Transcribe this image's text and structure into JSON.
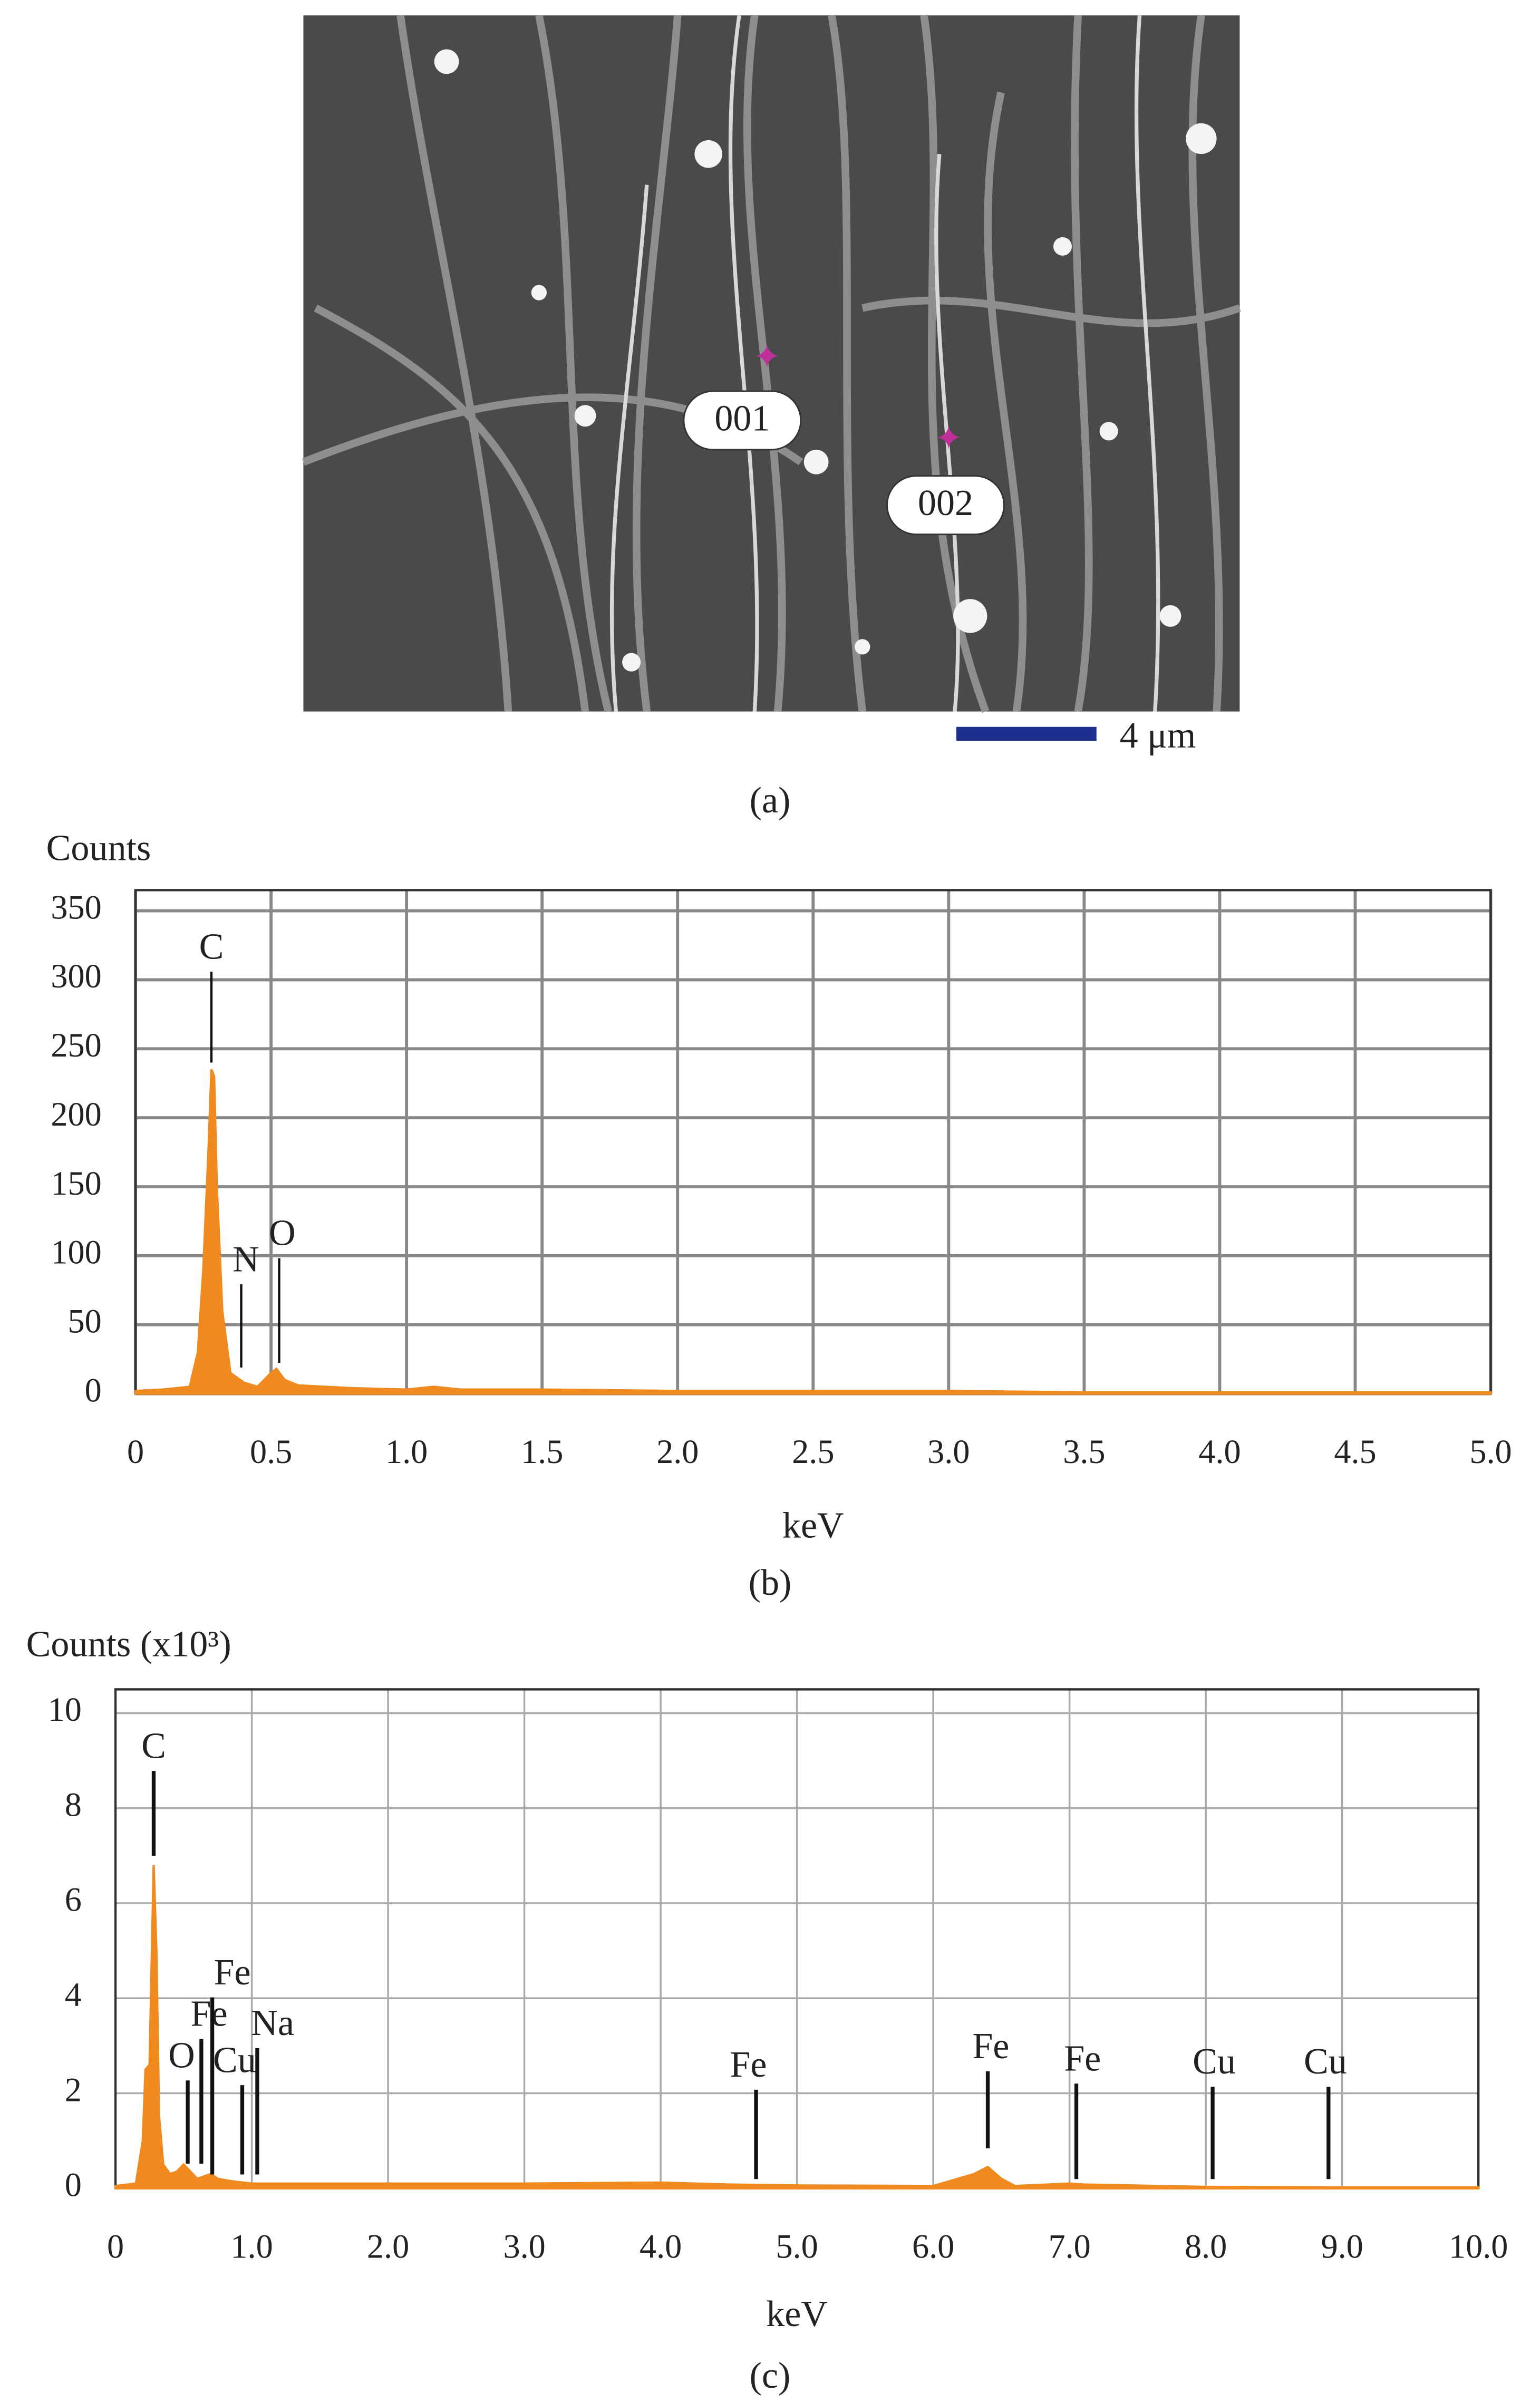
{
  "image": {
    "labels": [
      "001",
      "002"
    ],
    "scale_bar": "4 μm",
    "caption": "(a)"
  },
  "chart_data": [
    {
      "type": "area",
      "caption": "(b)",
      "y_label": "Counts",
      "x_label": "keV",
      "color": "#f08a1e",
      "grid": true,
      "x": [
        0,
        0.1,
        0.2,
        0.23,
        0.25,
        0.27,
        0.28,
        0.29,
        0.3,
        0.32,
        0.35,
        0.4,
        0.45,
        0.5,
        0.52,
        0.55,
        0.6,
        0.7,
        0.8,
        1.0,
        1.1,
        1.2,
        1.5,
        2.0,
        2.5,
        3.0,
        3.5,
        4.0,
        4.5,
        5.0
      ],
      "values": [
        2,
        3,
        5,
        30,
        90,
        180,
        235,
        230,
        150,
        60,
        15,
        8,
        5,
        15,
        18,
        10,
        6,
        5,
        4,
        3,
        5,
        3,
        3,
        2,
        2,
        2,
        1,
        1,
        1,
        1
      ],
      "xlim": [
        0,
        5
      ],
      "ylim": [
        0,
        365
      ],
      "xticks": [
        0,
        0.5,
        {
          "value": 1,
          "label": "1.0"
        },
        1.5,
        {
          "value": 2,
          "label": "2.0"
        },
        2.5,
        {
          "value": 3,
          "label": "3.0"
        },
        3.5,
        {
          "value": 4,
          "label": "4.0"
        },
        4.5,
        {
          "value": 5,
          "label": "5.0"
        }
      ],
      "yticks": [
        0,
        50,
        100,
        150,
        200,
        250,
        300,
        350
      ],
      "peaks": [
        {
          "label": "C",
          "x": 0.28
        },
        {
          "label": "N",
          "x": 0.39
        },
        {
          "label": "O",
          "x": 0.53
        }
      ]
    },
    {
      "type": "area",
      "caption": "(c)",
      "y_label": "Counts (x10³)",
      "x_label": "keV",
      "color": "#f08a1e",
      "grid": true,
      "x": [
        0,
        0.15,
        0.2,
        0.22,
        0.25,
        0.27,
        0.28,
        0.3,
        0.32,
        0.35,
        0.4,
        0.45,
        0.5,
        0.55,
        0.6,
        0.7,
        0.75,
        0.85,
        1.0,
        1.5,
        2.0,
        3.0,
        4.0,
        4.5,
        5.0,
        6.0,
        6.3,
        6.4,
        6.5,
        6.6,
        7.0,
        7.1,
        8.0,
        9.0,
        10.0
      ],
      "values": [
        0.05,
        0.1,
        1.0,
        2.5,
        2.6,
        5.4,
        6.8,
        5.0,
        1.5,
        0.5,
        0.3,
        0.35,
        0.5,
        0.35,
        0.2,
        0.3,
        0.2,
        0.15,
        0.1,
        0.1,
        0.1,
        0.1,
        0.12,
        0.08,
        0.06,
        0.05,
        0.3,
        0.45,
        0.2,
        0.05,
        0.1,
        0.08,
        0.03,
        0.02,
        0.02
      ],
      "xlim": [
        0,
        10
      ],
      "ylim": [
        0,
        10.5
      ],
      "xticks": [
        0,
        {
          "value": 1,
          "label": "1.0"
        },
        {
          "value": 2,
          "label": "2.0"
        },
        {
          "value": 3,
          "label": "3.0"
        },
        {
          "value": 4,
          "label": "4.0"
        },
        {
          "value": 5,
          "label": "5.0"
        },
        {
          "value": 6,
          "label": "6.0"
        },
        {
          "value": 7,
          "label": "7.0"
        },
        {
          "value": 8,
          "label": "8.0"
        },
        {
          "value": 9,
          "label": "9.0"
        },
        {
          "value": 10,
          "label": "10.0"
        }
      ],
      "yticks": [
        0,
        2,
        4,
        6,
        8,
        10
      ],
      "peaks": [
        {
          "label": "C",
          "x": 0.28
        },
        {
          "label": "O",
          "x": 0.53
        },
        {
          "label": "Fe",
          "x": 0.63
        },
        {
          "label": "Fe",
          "x": 0.71
        },
        {
          "label": "Cu",
          "x": 0.93
        },
        {
          "label": "Na",
          "x": 1.04
        },
        {
          "label": "Fe",
          "x": 4.7
        },
        {
          "label": "Fe",
          "x": 6.4
        },
        {
          "label": "Fe",
          "x": 7.05
        },
        {
          "label": "Cu",
          "x": 8.05
        },
        {
          "label": "Cu",
          "x": 8.9
        }
      ]
    }
  ]
}
